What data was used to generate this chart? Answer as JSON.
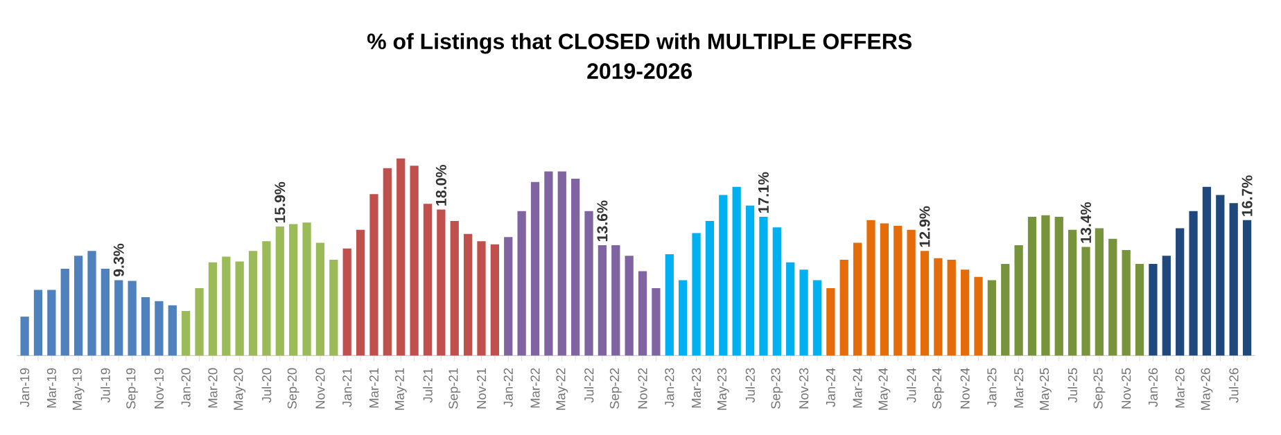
{
  "chart_data": {
    "type": "bar",
    "title": "% of Listings that CLOSED with MULTIPLE OFFERS",
    "subtitle": "2019-2026",
    "categories": [
      "Jan-19",
      null,
      "Mar-19",
      null,
      "May-19",
      null,
      "Jul-19",
      null,
      "Sep-19",
      null,
      "Nov-19",
      null,
      "Jan-20",
      null,
      "Mar-20",
      null,
      "May-20",
      null,
      "Jul-20",
      null,
      "Sep-20",
      null,
      "Nov-20",
      null,
      "Jan-21",
      null,
      "Mar-21",
      null,
      "May-21",
      null,
      "Jul-21",
      null,
      "Sep-21",
      null,
      "Nov-21",
      null,
      "Jan-22",
      null,
      "Mar-22",
      null,
      "May-22",
      null,
      "Jul-22",
      null,
      "Sep-22",
      null,
      "Nov-22",
      null,
      "Jan-23",
      null,
      "Mar-23",
      null,
      "May-23",
      null,
      "Jul-23",
      null,
      "Sep-23",
      null,
      "Nov-23",
      null,
      "Jan-24",
      null,
      "Mar-24",
      null,
      "May-24",
      null,
      "Jul-24",
      null,
      "Sep-24",
      null,
      "Nov-24",
      null,
      "Jan-25",
      null,
      "Mar-25",
      null,
      "May-25",
      null,
      "Jul-25",
      null,
      "Sep-25",
      null,
      "Nov-25",
      null,
      "Jan-26",
      null,
      "Mar-26",
      null,
      "May-26",
      null,
      "Jul-26",
      null
    ],
    "values": [
      4.8,
      8.1,
      8.1,
      10.7,
      12.3,
      12.9,
      10.7,
      9.3,
      9.2,
      7.2,
      6.7,
      6.2,
      5.5,
      8.3,
      11.5,
      12.2,
      11.6,
      12.9,
      14.1,
      15.9,
      16.2,
      16.4,
      13.9,
      11.8,
      13.2,
      15.5,
      19.9,
      23.1,
      24.3,
      23.4,
      18.7,
      18.0,
      16.6,
      15.0,
      14.1,
      13.7,
      14.6,
      17.8,
      21.4,
      22.7,
      22.7,
      21.8,
      17.8,
      13.6,
      13.6,
      12.3,
      10.4,
      8.3,
      12.5,
      9.3,
      15.1,
      16.6,
      19.8,
      20.8,
      18.5,
      17.1,
      15.8,
      11.5,
      10.6,
      9.3,
      8.3,
      11.8,
      13.9,
      16.7,
      16.3,
      16.0,
      15.5,
      12.9,
      12.0,
      11.8,
      10.6,
      9.7,
      9.3,
      11.3,
      13.6,
      17.1,
      17.3,
      17.1,
      15.5,
      13.4,
      15.7,
      14.4,
      13.0,
      11.3,
      11.3,
      12.3,
      15.7,
      17.8,
      20.8,
      19.8,
      18.8,
      16.7
    ],
    "value_labels": [
      null,
      null,
      null,
      null,
      null,
      null,
      null,
      "9.3%",
      null,
      null,
      null,
      null,
      null,
      null,
      null,
      null,
      null,
      null,
      null,
      "15.9%",
      null,
      null,
      null,
      null,
      null,
      null,
      null,
      null,
      null,
      null,
      null,
      "18.0%",
      null,
      null,
      null,
      null,
      null,
      null,
      null,
      null,
      null,
      null,
      null,
      "13.6%",
      null,
      null,
      null,
      null,
      null,
      null,
      null,
      null,
      null,
      null,
      null,
      "17.1%",
      null,
      null,
      null,
      null,
      null,
      null,
      null,
      null,
      null,
      null,
      null,
      "12.9%",
      null,
      null,
      null,
      null,
      null,
      null,
      null,
      null,
      null,
      null,
      null,
      "13.4%",
      null,
      null,
      null,
      null,
      null,
      null,
      null,
      null,
      null,
      null,
      null,
      "16.7%"
    ],
    "colors": [
      "#4f81bd",
      "#4f81bd",
      "#4f81bd",
      "#4f81bd",
      "#4f81bd",
      "#4f81bd",
      "#4f81bd",
      "#4f81bd",
      "#4f81bd",
      "#4f81bd",
      "#4f81bd",
      "#4f81bd",
      "#9bbb59",
      "#9bbb59",
      "#9bbb59",
      "#9bbb59",
      "#9bbb59",
      "#9bbb59",
      "#9bbb59",
      "#9bbb59",
      "#9bbb59",
      "#9bbb59",
      "#9bbb59",
      "#9bbb59",
      "#c0504d",
      "#c0504d",
      "#c0504d",
      "#c0504d",
      "#c0504d",
      "#c0504d",
      "#c0504d",
      "#c0504d",
      "#c0504d",
      "#c0504d",
      "#c0504d",
      "#c0504d",
      "#8064a2",
      "#8064a2",
      "#8064a2",
      "#8064a2",
      "#8064a2",
      "#8064a2",
      "#8064a2",
      "#8064a2",
      "#8064a2",
      "#8064a2",
      "#8064a2",
      "#8064a2",
      "#00b0f0",
      "#00b0f0",
      "#00b0f0",
      "#00b0f0",
      "#00b0f0",
      "#00b0f0",
      "#00b0f0",
      "#00b0f0",
      "#00b0f0",
      "#00b0f0",
      "#00b0f0",
      "#00b0f0",
      "#e46c0a",
      "#e46c0a",
      "#e46c0a",
      "#e46c0a",
      "#e46c0a",
      "#e46c0a",
      "#e46c0a",
      "#e46c0a",
      "#e46c0a",
      "#e46c0a",
      "#e46c0a",
      "#e46c0a",
      "#77933c",
      "#77933c",
      "#77933c",
      "#77933c",
      "#77933c",
      "#77933c",
      "#77933c",
      "#77933c",
      "#77933c",
      "#77933c",
      "#77933c",
      "#77933c",
      "#1f497d",
      "#1f497d",
      "#1f497d",
      "#1f497d",
      "#1f497d",
      "#1f497d",
      "#1f497d",
      "#1f497d"
    ],
    "data_labels": false
  }
}
